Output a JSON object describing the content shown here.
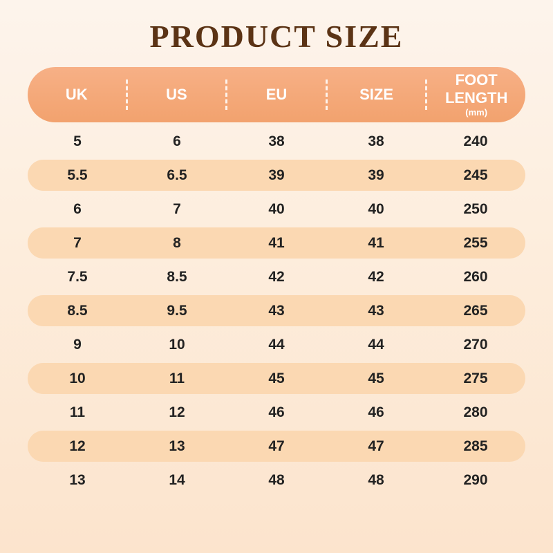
{
  "page": {
    "title": "PRODUCT SIZE"
  },
  "table": {
    "headers": [
      {
        "label": "UK",
        "sub": ""
      },
      {
        "label": "US",
        "sub": ""
      },
      {
        "label": "EU",
        "sub": ""
      },
      {
        "label": "SIZE",
        "sub": ""
      },
      {
        "label": "FOOT LENGTH",
        "sub": "(mm)"
      }
    ],
    "rows": [
      [
        "5",
        "6",
        "38",
        "38",
        "240"
      ],
      [
        "5.5",
        "6.5",
        "39",
        "39",
        "245"
      ],
      [
        "6",
        "7",
        "40",
        "40",
        "250"
      ],
      [
        "7",
        "8",
        "41",
        "41",
        "255"
      ],
      [
        "7.5",
        "8.5",
        "42",
        "42",
        "260"
      ],
      [
        "8.5",
        "9.5",
        "43",
        "43",
        "265"
      ],
      [
        "9",
        "10",
        "44",
        "44",
        "270"
      ],
      [
        "10",
        "11",
        "45",
        "45",
        "275"
      ],
      [
        "11",
        "12",
        "46",
        "46",
        "280"
      ],
      [
        "12",
        "13",
        "47",
        "47",
        "285"
      ],
      [
        "13",
        "14",
        "48",
        "48",
        "290"
      ]
    ]
  },
  "colors": {
    "header_bg": "#f2a26e",
    "alt_row_bg": "#fbd8b2",
    "title_color": "#5b3315",
    "text_color": "#222222",
    "background_top": "#fdf4ec",
    "background_bottom": "#fce4cd",
    "header_text": "#ffffff"
  },
  "chart_data": {
    "type": "table",
    "title": "PRODUCT SIZE",
    "columns": [
      "UK",
      "US",
      "EU",
      "SIZE",
      "FOOT LENGTH (mm)"
    ],
    "rows": [
      [
        "5",
        "6",
        "38",
        "38",
        "240"
      ],
      [
        "5.5",
        "6.5",
        "39",
        "39",
        "245"
      ],
      [
        "6",
        "7",
        "40",
        "40",
        "250"
      ],
      [
        "7",
        "8",
        "41",
        "41",
        "255"
      ],
      [
        "7.5",
        "8.5",
        "42",
        "42",
        "260"
      ],
      [
        "8.5",
        "9.5",
        "43",
        "43",
        "265"
      ],
      [
        "9",
        "10",
        "44",
        "44",
        "270"
      ],
      [
        "10",
        "11",
        "45",
        "45",
        "275"
      ],
      [
        "11",
        "12",
        "46",
        "46",
        "280"
      ],
      [
        "12",
        "13",
        "47",
        "47",
        "285"
      ],
      [
        "13",
        "14",
        "48",
        "48",
        "290"
      ]
    ]
  }
}
